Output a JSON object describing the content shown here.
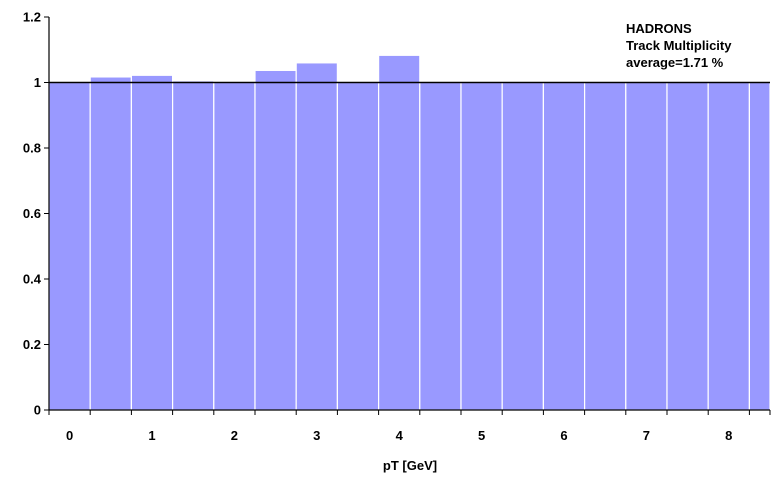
{
  "chart_data": {
    "type": "bar",
    "title": "",
    "xlabel": "pT [GeV]",
    "ylabel": "",
    "ylim": [
      0,
      1.2
    ],
    "yticks": [
      0,
      0.2,
      0.4,
      0.6,
      0.8,
      1,
      1.2
    ],
    "ytick_labels": [
      "0",
      "0.2",
      "0.4",
      "0.6",
      "0.8",
      "1",
      "1.2"
    ],
    "xticks": [
      0,
      1,
      2,
      3,
      4,
      5,
      6,
      7,
      8
    ],
    "xtick_labels": [
      "0",
      "1",
      "2",
      "3",
      "4",
      "5",
      "6",
      "7",
      "8"
    ],
    "xlim": [
      -0.25,
      8.5
    ],
    "bin_edges": [
      -0.25,
      0.25,
      0.75,
      1.25,
      1.75,
      2.25,
      2.75,
      3.25,
      3.75,
      4.25,
      4.75,
      5.25,
      5.75,
      6.25,
      6.75,
      7.25,
      7.75,
      8.25,
      8.5
    ],
    "values": [
      1.0,
      1.017,
      1.022,
      1.005,
      1.0,
      1.037,
      1.06,
      1.0,
      1.083,
      1.0,
      1.0,
      1.0,
      1.0,
      1.0,
      1.0,
      1.0,
      1.0,
      1.0
    ],
    "bar_color": "#9999ff",
    "bar_edge_color": "#ffffff",
    "reference_line": 1,
    "grid": false,
    "annotation": [
      "HADRONS",
      "Track Multiplicity",
      "average=1.71 %"
    ],
    "annotation_position": "top-right"
  }
}
